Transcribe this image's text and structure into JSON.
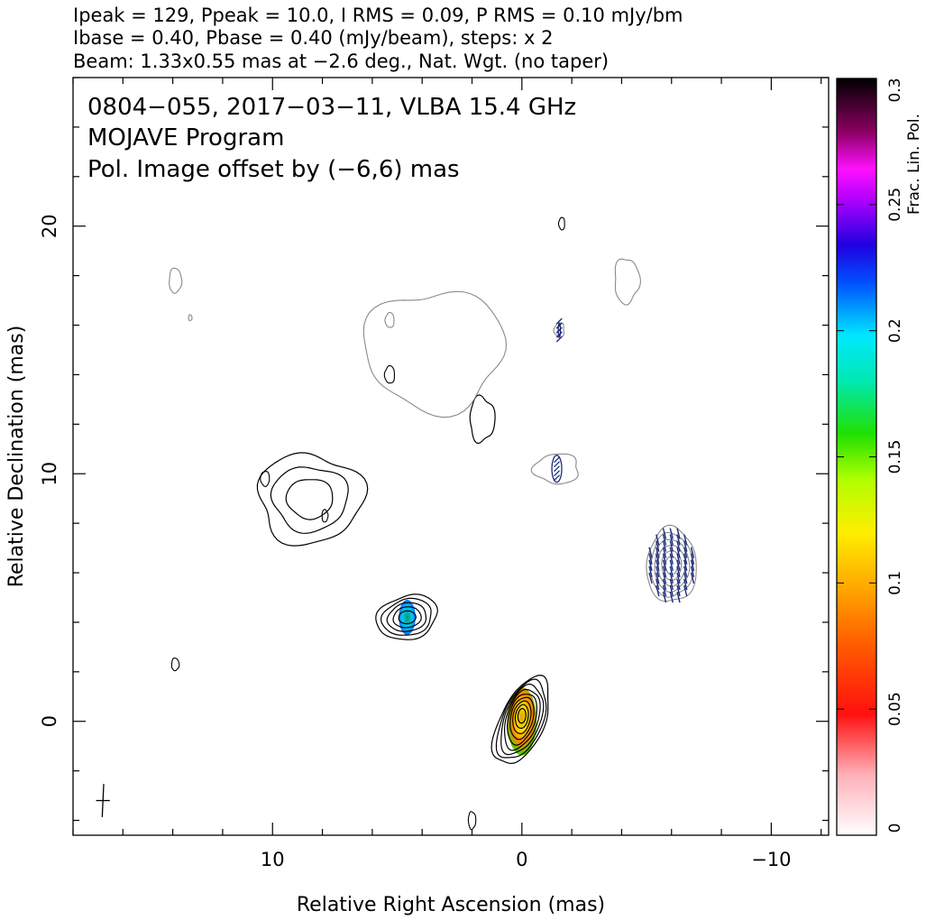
{
  "header": {
    "line1": "Ipeak = 129, Ppeak = 10.0, I RMS = 0.09, P RMS = 0.10 mJy/bm",
    "line2": "Ibase = 0.40, Pbase = 0.40 (mJy/beam), steps: x 2",
    "line3": "Beam: 1.33x0.55 mas at −2.6 deg., Nat. Wgt. (no taper)"
  },
  "panel": {
    "title1": "0804−055, 2017−03−11, VLBA 15.4 GHz",
    "title2": "MOJAVE Program",
    "title3": "Pol. Image offset by (−6,6) mas",
    "title3_color": "#5b7fd6"
  },
  "colorbar": {
    "label": "Frac. Lin. Pol.",
    "ticks": [
      "0",
      "0.05",
      "0.1",
      "0.15",
      "0.2",
      "0.25",
      "0.3"
    ],
    "range": [
      0,
      0.3
    ]
  },
  "chart_data": {
    "type": "contour",
    "xlabel": "Relative Right Ascension (mas)",
    "ylabel": "Relative Declination (mas)",
    "xlim": [
      18,
      -12.3
    ],
    "ylim": [
      -4.6,
      26
    ],
    "xticks": [
      10,
      0,
      -10
    ],
    "xtick_labels": [
      "10",
      "0",
      "−10"
    ],
    "yticks": [
      0,
      10,
      20
    ],
    "ytick_labels": [
      "0",
      "10",
      "20"
    ],
    "colors": {
      "total_intensity": "#000000",
      "pol_intensity": "#8a8a8a",
      "evpa": "#1a2a7a"
    },
    "components": [
      {
        "name": "core",
        "x": 0.0,
        "y": 0.0,
        "rx": 0.95,
        "ry": 1.75,
        "levels": 9,
        "frac_pol": 0.1
      },
      {
        "name": "knot-1",
        "x": 4.6,
        "y": 4.2,
        "rx": 1.2,
        "ry": 0.9,
        "levels": 5,
        "frac_pol": 0.2
      },
      {
        "name": "knot-2",
        "x": 8.5,
        "y": 9.0,
        "rx": 2.1,
        "ry": 1.8,
        "levels": 3,
        "frac_pol": null
      },
      {
        "name": "knot-3",
        "x": 1.6,
        "y": 12.2,
        "rx": 0.5,
        "ry": 0.9,
        "levels": 1,
        "frac_pol": null
      },
      {
        "name": "pol-core",
        "x": -6.0,
        "y": 6.3,
        "rx": 1.0,
        "ry": 1.5,
        "levels": 6,
        "pol": true
      },
      {
        "name": "pol-knot-1",
        "x": -1.4,
        "y": 10.2,
        "rx": 0.9,
        "ry": 0.6,
        "levels": 1,
        "pol": true
      },
      {
        "name": "pol-knot-2",
        "x": -1.5,
        "y": 15.8,
        "rx": 0.2,
        "ry": 0.3,
        "levels": 1,
        "pol": true
      },
      {
        "name": "pol-extended",
        "x": 3.5,
        "y": 15.0,
        "rx": 2.8,
        "ry": 2.4,
        "levels": 1,
        "pol": true
      },
      {
        "name": "pol-north-blob",
        "x": -4.2,
        "y": 17.8,
        "rx": 0.5,
        "ry": 0.9,
        "levels": 1,
        "pol": true
      }
    ],
    "beam": {
      "major_mas": 1.33,
      "minor_mas": 0.55,
      "pa_deg": -2.6,
      "x": 16.8,
      "y": -3.2
    }
  }
}
